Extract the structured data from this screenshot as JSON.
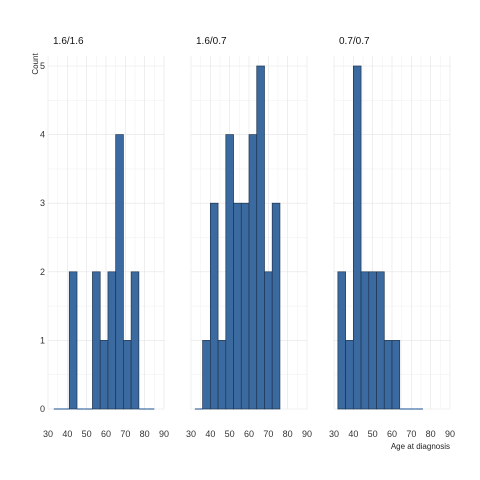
{
  "chart_data": {
    "type": "bar",
    "ylabel": "Count",
    "xlabel": "Age at diagnosis",
    "xlim": [
      30,
      90
    ],
    "ylim": [
      0,
      5
    ],
    "xticks": [
      30,
      40,
      50,
      60,
      70,
      80,
      90
    ],
    "yticks": [
      0,
      1,
      2,
      3,
      4,
      5
    ],
    "bin_width": 4,
    "grid": true,
    "bar_color": "#3b6aa0",
    "bar_edge_color": "#1f3550",
    "panels": [
      {
        "title": "1.6/1.6",
        "bins": [
          {
            "x0": 33,
            "x1": 37,
            "count": 0
          },
          {
            "x0": 37,
            "x1": 41,
            "count": 0
          },
          {
            "x0": 41,
            "x1": 45,
            "count": 2
          },
          {
            "x0": 45,
            "x1": 49,
            "count": 0
          },
          {
            "x0": 49,
            "x1": 53,
            "count": 0
          },
          {
            "x0": 53,
            "x1": 57,
            "count": 2
          },
          {
            "x0": 57,
            "x1": 61,
            "count": 1
          },
          {
            "x0": 61,
            "x1": 65,
            "count": 2
          },
          {
            "x0": 65,
            "x1": 69,
            "count": 4
          },
          {
            "x0": 69,
            "x1": 73,
            "count": 1
          },
          {
            "x0": 73,
            "x1": 77,
            "count": 2
          },
          {
            "x0": 77,
            "x1": 81,
            "count": 0
          },
          {
            "x0": 81,
            "x1": 85,
            "count": 0
          }
        ]
      },
      {
        "title": "1.6/0.7",
        "bins": [
          {
            "x0": 32,
            "x1": 36,
            "count": 0
          },
          {
            "x0": 36,
            "x1": 40,
            "count": 1
          },
          {
            "x0": 40,
            "x1": 44,
            "count": 3
          },
          {
            "x0": 44,
            "x1": 48,
            "count": 1
          },
          {
            "x0": 48,
            "x1": 52,
            "count": 4
          },
          {
            "x0": 52,
            "x1": 56,
            "count": 3
          },
          {
            "x0": 56,
            "x1": 60,
            "count": 3
          },
          {
            "x0": 60,
            "x1": 64,
            "count": 4
          },
          {
            "x0": 64,
            "x1": 68,
            "count": 5
          },
          {
            "x0": 68,
            "x1": 72,
            "count": 2
          },
          {
            "x0": 72,
            "x1": 76,
            "count": 3
          }
        ]
      },
      {
        "title": "0.7/0.7",
        "bins": [
          {
            "x0": 32,
            "x1": 36,
            "count": 2
          },
          {
            "x0": 36,
            "x1": 40,
            "count": 1
          },
          {
            "x0": 40,
            "x1": 44,
            "count": 5
          },
          {
            "x0": 44,
            "x1": 48,
            "count": 2
          },
          {
            "x0": 48,
            "x1": 52,
            "count": 2
          },
          {
            "x0": 52,
            "x1": 56,
            "count": 2
          },
          {
            "x0": 56,
            "x1": 60,
            "count": 1
          },
          {
            "x0": 60,
            "x1": 64,
            "count": 1
          },
          {
            "x0": 64,
            "x1": 68,
            "count": 0
          },
          {
            "x0": 68,
            "x1": 72,
            "count": 0
          },
          {
            "x0": 72,
            "x1": 76,
            "count": 0
          }
        ]
      }
    ]
  }
}
